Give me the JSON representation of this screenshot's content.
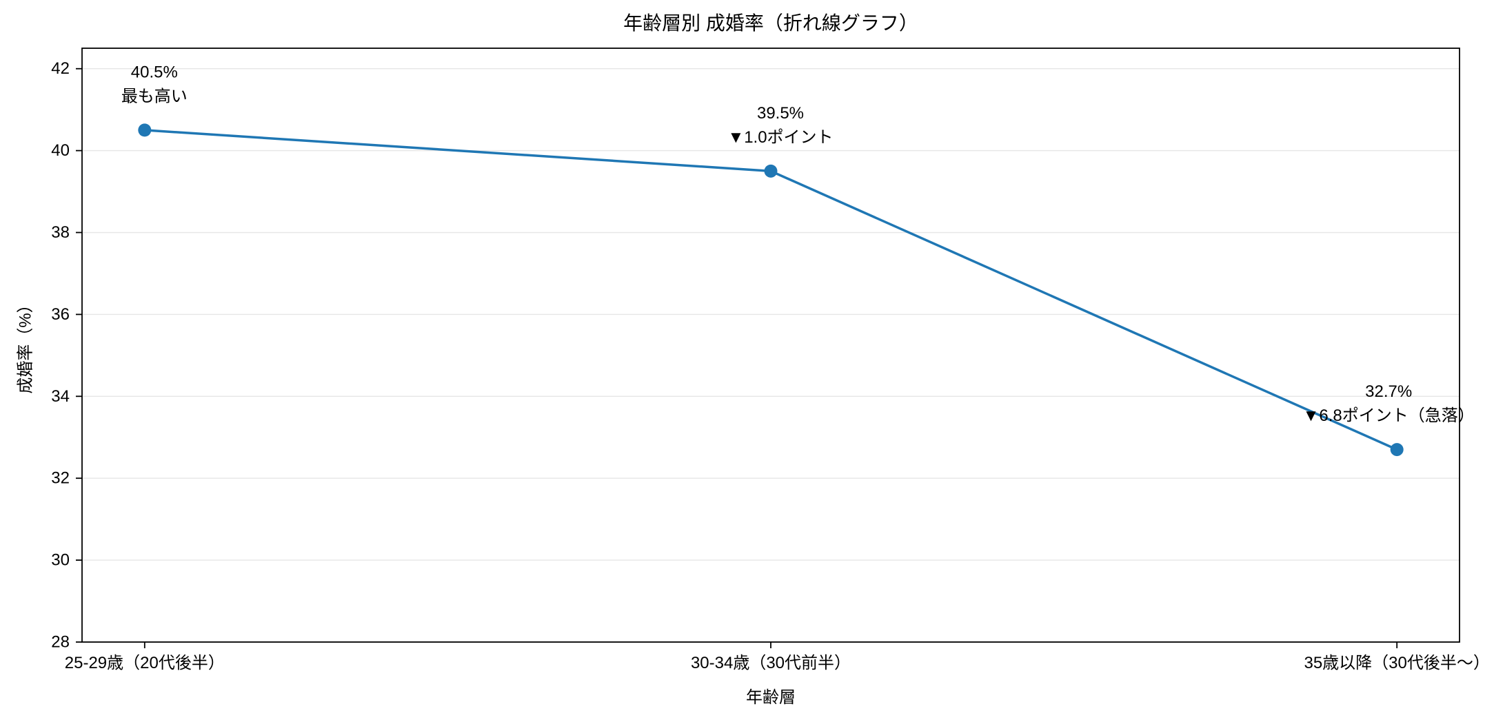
{
  "page": {
    "background_color": "#ffffff"
  },
  "chart_data": {
    "type": "line",
    "title": "年齢層別 成婚率（折れ線グラフ）",
    "xlabel": "年齢層",
    "ylabel": "成婚率（%）",
    "categories": [
      "25-29歳（20代後半）",
      "30-34歳（30代前半）",
      "35歳以降（30代後半〜）"
    ],
    "series": [
      {
        "name": "成婚率",
        "values": [
          40.5,
          39.5,
          32.7
        ]
      }
    ],
    "ylim": [
      28,
      42.5
    ],
    "yticks": [
      28,
      30,
      32,
      34,
      36,
      38,
      40,
      42
    ],
    "grid": "horizontal",
    "legend": "none",
    "line_color": "#1f77b4",
    "marker_color": "#1f77b4",
    "grid_color": "#e6e6e6",
    "spine_color": "#000000",
    "marker_shape": "circle",
    "annotations": [
      {
        "point": 0,
        "lines": [
          "40.5%",
          "最も高い"
        ],
        "dx": 14
      },
      {
        "point": 1,
        "lines": [
          "39.5%",
          "▼1.0ポイント"
        ],
        "dx": 14
      },
      {
        "point": 2,
        "lines": [
          "32.7%",
          "▼6.8ポイント（急落）"
        ],
        "dx": -12
      }
    ]
  }
}
